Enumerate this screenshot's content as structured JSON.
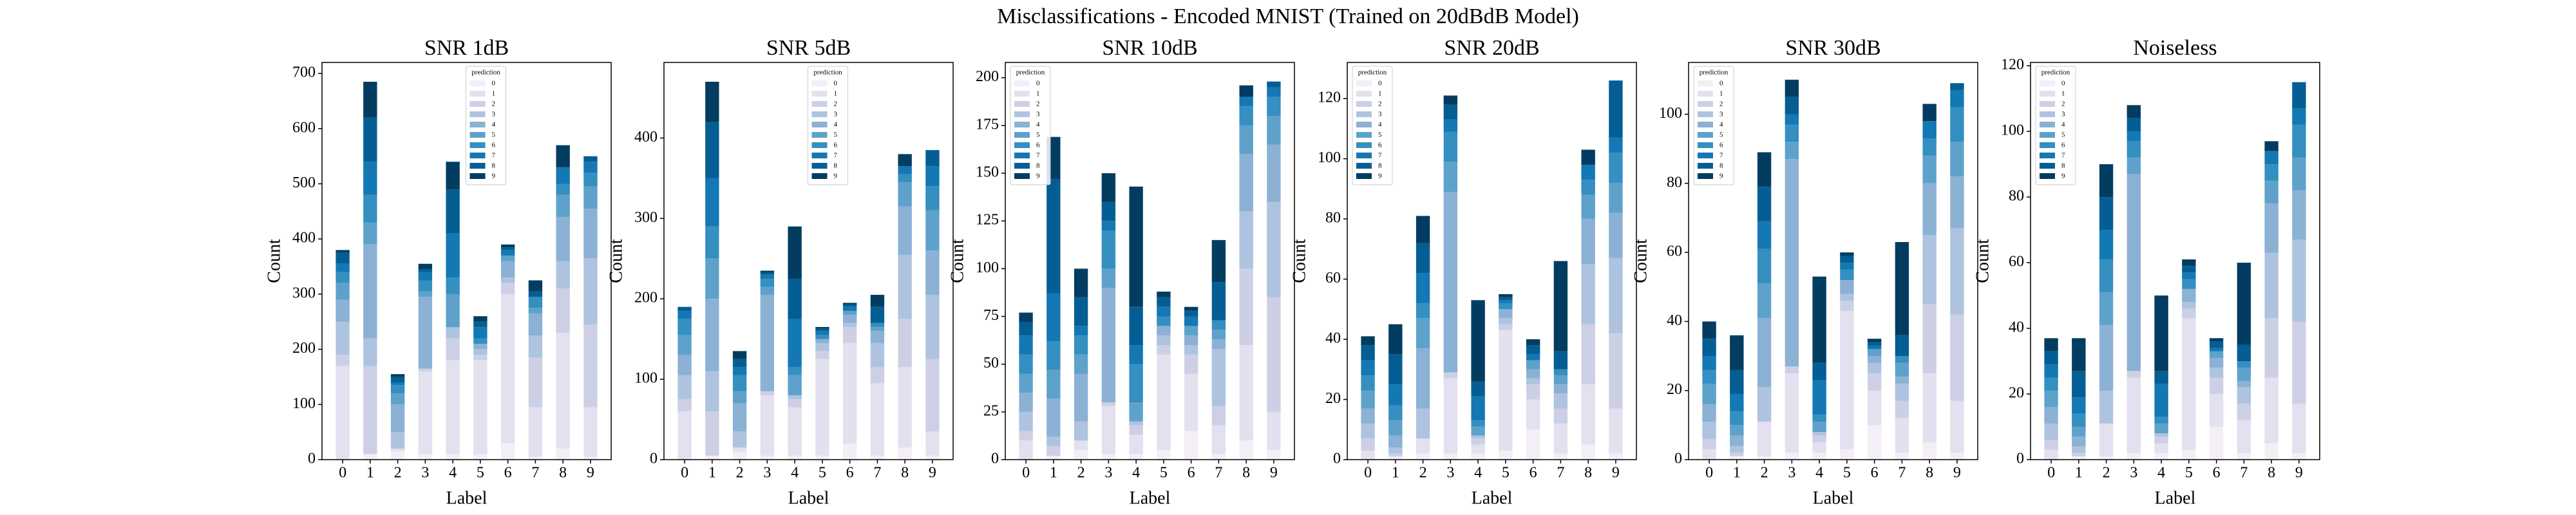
{
  "title": "Misclassifications - Encoded MNIST (Trained on 20dBdB Model)",
  "chart_data": [
    {
      "type": "bar",
      "stacked": true,
      "title": "SNR 1dB",
      "xlabel": "Label",
      "ylabel": "Count",
      "legend_title": "prediction",
      "legend_loc": "upper center",
      "categories": [
        "0",
        "1",
        "2",
        "3",
        "4",
        "5",
        "6",
        "7",
        "8",
        "9"
      ],
      "ylim": [
        0,
        720
      ],
      "yticks": [
        0,
        100,
        200,
        300,
        400,
        500,
        600,
        700
      ],
      "series": [
        {
          "name": "0",
          "color": "#f4eef6",
          "values": [
            0,
            10,
            15,
            10,
            10,
            10,
            30,
            5,
            20,
            5
          ]
        },
        {
          "name": "1",
          "color": "#e3e1ef",
          "values": [
            170,
            0,
            5,
            150,
            170,
            170,
            270,
            90,
            210,
            90
          ]
        },
        {
          "name": "2",
          "color": "#cdd0e5",
          "values": [
            20,
            160,
            0,
            5,
            40,
            10,
            20,
            90,
            80,
            150
          ]
        },
        {
          "name": "3",
          "color": "#aec3df",
          "values": [
            60,
            50,
            30,
            0,
            20,
            10,
            10,
            40,
            50,
            120
          ]
        },
        {
          "name": "4",
          "color": "#8bb1d4",
          "values": [
            40,
            170,
            50,
            130,
            0,
            10,
            30,
            40,
            80,
            90
          ]
        },
        {
          "name": "5",
          "color": "#5ea2cb",
          "values": [
            30,
            40,
            20,
            10,
            60,
            0,
            10,
            10,
            40,
            40
          ]
        },
        {
          "name": "6",
          "color": "#358fc0",
          "values": [
            20,
            50,
            15,
            20,
            30,
            10,
            0,
            20,
            20,
            25
          ]
        },
        {
          "name": "7",
          "color": "#1378b4",
          "values": [
            15,
            60,
            5,
            15,
            80,
            20,
            10,
            0,
            30,
            20
          ]
        },
        {
          "name": "8",
          "color": "#045e93",
          "values": [
            20,
            80,
            10,
            5,
            80,
            10,
            5,
            10,
            0,
            10
          ]
        },
        {
          "name": "9",
          "color": "#023d61",
          "values": [
            5,
            65,
            5,
            10,
            50,
            10,
            5,
            20,
            40,
            0
          ]
        }
      ]
    },
    {
      "type": "bar",
      "stacked": true,
      "title": "SNR 5dB",
      "xlabel": "Label",
      "ylabel": "Count",
      "legend_title": "prediction",
      "legend_loc": "upper center",
      "categories": [
        "0",
        "1",
        "2",
        "3",
        "4",
        "5",
        "6",
        "7",
        "8",
        "9"
      ],
      "ylim": [
        0,
        494
      ],
      "yticks": [
        0,
        100,
        200,
        300,
        400
      ],
      "series": [
        {
          "name": "0",
          "color": "#f4eef6",
          "values": [
            0,
            5,
            10,
            5,
            5,
            5,
            20,
            5,
            15,
            5
          ]
        },
        {
          "name": "1",
          "color": "#e3e1ef",
          "values": [
            60,
            0,
            5,
            75,
            60,
            120,
            125,
            90,
            100,
            30
          ]
        },
        {
          "name": "2",
          "color": "#cdd0e5",
          "values": [
            15,
            55,
            0,
            5,
            10,
            10,
            20,
            20,
            60,
            90
          ]
        },
        {
          "name": "3",
          "color": "#aec3df",
          "values": [
            30,
            50,
            20,
            0,
            5,
            10,
            5,
            30,
            80,
            80
          ]
        },
        {
          "name": "4",
          "color": "#8bb1d4",
          "values": [
            25,
            90,
            35,
            120,
            0,
            5,
            10,
            15,
            60,
            55
          ]
        },
        {
          "name": "5",
          "color": "#5ea2cb",
          "values": [
            25,
            50,
            15,
            10,
            25,
            0,
            5,
            5,
            30,
            50
          ]
        },
        {
          "name": "6",
          "color": "#358fc0",
          "values": [
            20,
            40,
            20,
            10,
            10,
            5,
            0,
            5,
            10,
            30
          ]
        },
        {
          "name": "7",
          "color": "#1378b4",
          "values": [
            10,
            60,
            10,
            5,
            60,
            5,
            5,
            0,
            10,
            25
          ]
        },
        {
          "name": "8",
          "color": "#045e93",
          "values": [
            5,
            70,
            10,
            3,
            50,
            3,
            3,
            20,
            0,
            20
          ]
        },
        {
          "name": "9",
          "color": "#023d61",
          "values": [
            0,
            50,
            10,
            2,
            65,
            2,
            2,
            15,
            15,
            0
          ]
        }
      ]
    },
    {
      "type": "bar",
      "stacked": true,
      "title": "SNR 10dB",
      "xlabel": "Label",
      "ylabel": "Count",
      "legend_title": "prediction",
      "legend_loc": "upper left",
      "categories": [
        "0",
        "1",
        "2",
        "3",
        "4",
        "5",
        "6",
        "7",
        "8",
        "9"
      ],
      "ylim": [
        0,
        208
      ],
      "yticks": [
        0,
        25,
        50,
        75,
        100,
        125,
        150,
        175,
        200
      ],
      "series": [
        {
          "name": "0",
          "color": "#f4eef6",
          "values": [
            0,
            2,
            5,
            3,
            3,
            5,
            15,
            3,
            10,
            5
          ]
        },
        {
          "name": "1",
          "color": "#e3e1ef",
          "values": [
            10,
            0,
            5,
            25,
            10,
            50,
            30,
            15,
            50,
            20
          ]
        },
        {
          "name": "2",
          "color": "#cdd0e5",
          "values": [
            5,
            5,
            0,
            2,
            5,
            5,
            10,
            10,
            40,
            60
          ]
        },
        {
          "name": "3",
          "color": "#aec3df",
          "values": [
            10,
            5,
            10,
            0,
            2,
            5,
            5,
            30,
            30,
            50
          ]
        },
        {
          "name": "4",
          "color": "#8bb1d4",
          "values": [
            10,
            20,
            25,
            60,
            0,
            5,
            5,
            5,
            30,
            30
          ]
        },
        {
          "name": "5",
          "color": "#5ea2cb",
          "values": [
            10,
            15,
            10,
            10,
            10,
            0,
            5,
            5,
            15,
            15
          ]
        },
        {
          "name": "6",
          "color": "#358fc0",
          "values": [
            10,
            15,
            10,
            20,
            20,
            5,
            0,
            5,
            10,
            10
          ]
        },
        {
          "name": "7",
          "color": "#1378b4",
          "values": [
            10,
            25,
            5,
            5,
            10,
            5,
            5,
            0,
            5,
            5
          ]
        },
        {
          "name": "8",
          "color": "#045e93",
          "values": [
            7,
            60,
            15,
            10,
            20,
            5,
            3,
            20,
            0,
            3
          ]
        },
        {
          "name": "9",
          "color": "#023d61",
          "values": [
            5,
            22,
            15,
            15,
            63,
            3,
            2,
            22,
            6,
            0
          ]
        }
      ]
    },
    {
      "type": "bar",
      "stacked": true,
      "title": "SNR 20dB",
      "xlabel": "Label",
      "ylabel": "Count",
      "legend_title": "prediction",
      "legend_loc": "upper left",
      "categories": [
        "0",
        "1",
        "2",
        "3",
        "4",
        "5",
        "6",
        "7",
        "8",
        "9"
      ],
      "ylim": [
        0,
        132
      ],
      "yticks": [
        0,
        20,
        40,
        60,
        80,
        100,
        120
      ],
      "series": [
        {
          "name": "0",
          "color": "#f4eef6",
          "values": [
            0,
            1,
            2,
            2,
            2,
            3,
            10,
            2,
            5,
            2
          ]
        },
        {
          "name": "1",
          "color": "#e3e1ef",
          "values": [
            3,
            0,
            5,
            25,
            3,
            40,
            10,
            10,
            20,
            15
          ]
        },
        {
          "name": "2",
          "color": "#cdd0e5",
          "values": [
            4,
            1,
            0,
            2,
            2,
            2,
            5,
            5,
            20,
            25
          ]
        },
        {
          "name": "3",
          "color": "#aec3df",
          "values": [
            5,
            2,
            10,
            0,
            1,
            2,
            2,
            5,
            20,
            25
          ]
        },
        {
          "name": "4",
          "color": "#8bb1d4",
          "values": [
            5,
            4,
            20,
            60,
            0,
            3,
            3,
            3,
            15,
            15
          ]
        },
        {
          "name": "5",
          "color": "#5ea2cb",
          "values": [
            6,
            5,
            10,
            10,
            3,
            0,
            3,
            3,
            8,
            10
          ]
        },
        {
          "name": "6",
          "color": "#358fc0",
          "values": [
            5,
            5,
            5,
            10,
            2,
            2,
            0,
            2,
            5,
            10
          ]
        },
        {
          "name": "7",
          "color": "#1378b4",
          "values": [
            5,
            7,
            10,
            4,
            8,
            1,
            2,
            0,
            5,
            5
          ]
        },
        {
          "name": "8",
          "color": "#045e93",
          "values": [
            5,
            10,
            10,
            5,
            5,
            1,
            3,
            6,
            0,
            19
          ]
        },
        {
          "name": "9",
          "color": "#023d61",
          "values": [
            3,
            10,
            9,
            3,
            27,
            1,
            2,
            30,
            5,
            0
          ]
        }
      ]
    },
    {
      "type": "bar",
      "stacked": true,
      "title": "SNR 30dB",
      "xlabel": "Label",
      "ylabel": "Count",
      "legend_title": "prediction",
      "legend_loc": "upper left",
      "categories": [
        "0",
        "1",
        "2",
        "3",
        "4",
        "5",
        "6",
        "7",
        "8",
        "9"
      ],
      "ylim": [
        0,
        115
      ],
      "yticks": [
        0,
        20,
        40,
        60,
        80,
        100
      ],
      "series": [
        {
          "name": "0",
          "color": "#f4eef6",
          "values": [
            0,
            1,
            1,
            2,
            2,
            3,
            10,
            2,
            5,
            2
          ]
        },
        {
          "name": "1",
          "color": "#e3e1ef",
          "values": [
            3,
            0,
            10,
            23,
            3,
            40,
            10,
            10,
            20,
            15
          ]
        },
        {
          "name": "2",
          "color": "#cdd0e5",
          "values": [
            3,
            1,
            0,
            2,
            2,
            3,
            5,
            5,
            20,
            25
          ]
        },
        {
          "name": "3",
          "color": "#aec3df",
          "values": [
            5,
            2,
            10,
            0,
            1,
            2,
            3,
            5,
            20,
            25
          ]
        },
        {
          "name": "4",
          "color": "#8bb1d4",
          "values": [
            5,
            3,
            20,
            60,
            0,
            4,
            2,
            2,
            15,
            15
          ]
        },
        {
          "name": "5",
          "color": "#5ea2cb",
          "values": [
            6,
            3,
            10,
            5,
            3,
            0,
            2,
            4,
            8,
            10
          ]
        },
        {
          "name": "6",
          "color": "#358fc0",
          "values": [
            4,
            4,
            10,
            5,
            2,
            3,
            0,
            2,
            5,
            10
          ]
        },
        {
          "name": "7",
          "color": "#1378b4",
          "values": [
            4,
            5,
            8,
            3,
            10,
            2,
            1,
            0,
            5,
            5
          ]
        },
        {
          "name": "8",
          "color": "#045e93",
          "values": [
            5,
            7,
            10,
            5,
            5,
            2,
            1,
            6,
            0,
            2
          ]
        },
        {
          "name": "9",
          "color": "#023d61",
          "values": [
            5,
            10,
            10,
            5,
            25,
            1,
            1,
            27,
            5,
            0
          ]
        }
      ]
    },
    {
      "type": "bar",
      "stacked": true,
      "title": "Noiseless",
      "xlabel": "Label",
      "ylabel": "Count",
      "legend_title": "prediction",
      "legend_loc": "upper left",
      "categories": [
        "0",
        "1",
        "2",
        "3",
        "4",
        "5",
        "6",
        "7",
        "8",
        "9"
      ],
      "ylim": [
        0,
        121
      ],
      "yticks": [
        0,
        20,
        40,
        60,
        80,
        100,
        120
      ],
      "series": [
        {
          "name": "0",
          "color": "#f4eef6",
          "values": [
            0,
            1,
            1,
            2,
            2,
            3,
            10,
            2,
            5,
            2
          ]
        },
        {
          "name": "1",
          "color": "#e3e1ef",
          "values": [
            3,
            0,
            10,
            23,
            3,
            40,
            10,
            10,
            20,
            15
          ]
        },
        {
          "name": "2",
          "color": "#cdd0e5",
          "values": [
            3,
            1,
            0,
            2,
            2,
            3,
            5,
            5,
            18,
            25
          ]
        },
        {
          "name": "3",
          "color": "#aec3df",
          "values": [
            5,
            2,
            10,
            0,
            1,
            2,
            3,
            5,
            20,
            25
          ]
        },
        {
          "name": "4",
          "color": "#8bb1d4",
          "values": [
            5,
            3,
            20,
            60,
            0,
            4,
            3,
            2,
            15,
            15
          ]
        },
        {
          "name": "5",
          "color": "#5ea2cb",
          "values": [
            5,
            3,
            10,
            5,
            3,
            0,
            2,
            4,
            7,
            10
          ]
        },
        {
          "name": "6",
          "color": "#358fc0",
          "values": [
            4,
            4,
            10,
            5,
            2,
            3,
            0,
            2,
            5,
            10
          ]
        },
        {
          "name": "7",
          "color": "#1378b4",
          "values": [
            4,
            5,
            9,
            3,
            10,
            2,
            1,
            0,
            4,
            5
          ]
        },
        {
          "name": "8",
          "color": "#045e93",
          "values": [
            4,
            8,
            10,
            4,
            4,
            2,
            2,
            5,
            0,
            8
          ]
        },
        {
          "name": "9",
          "color": "#023d61",
          "values": [
            4,
            10,
            10,
            4,
            23,
            2,
            1,
            25,
            3,
            0
          ]
        }
      ]
    }
  ]
}
